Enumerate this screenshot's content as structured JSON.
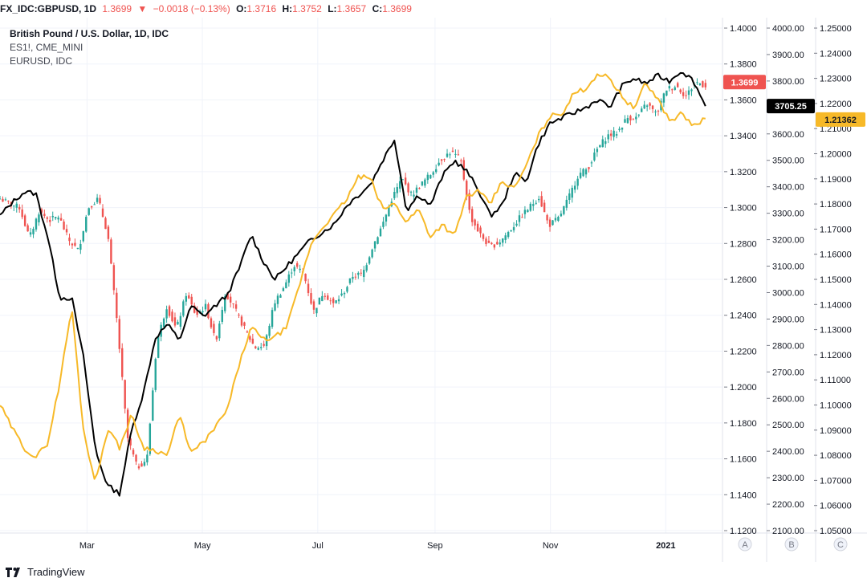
{
  "header": {
    "symbol": "FX_IDC:GBPUSD, 1D",
    "last": "1.3699",
    "arrow": "▼",
    "change": "−0.0018 (−0.13%)",
    "o_label": "O:",
    "o": "1.3716",
    "h_label": "H:",
    "h": "1.3752",
    "l_label": "L:",
    "l": "1.3657",
    "c_label": "C:",
    "c": "1.3699"
  },
  "legend": {
    "line1": "British Pound / U.S. Dollar, 1D, IDC",
    "line2": "ES1!, CME_MINI",
    "line3": "EURUSD, IDC"
  },
  "footer": {
    "brand": "TradingView"
  },
  "colors": {
    "up": "#26a69a",
    "down": "#ef5350",
    "es": "#000000",
    "eur": "#f7b928",
    "grid": "#f0f3fa"
  },
  "chart_data": {
    "type": "line",
    "title": "British Pound / U.S. Dollar, 1D, IDC",
    "x_ticks": [
      "Mar",
      "May",
      "Jul",
      "Sep",
      "Nov",
      "2021"
    ],
    "x_range": [
      "2020-01-15",
      "2021-01-31"
    ],
    "axis_buttons": [
      "A",
      "B",
      "C"
    ],
    "axes": {
      "A": {
        "min": 1.12,
        "max": 1.4,
        "ticks": [
          "1.4000",
          "1.3800",
          "1.3600",
          "1.3400",
          "1.3200",
          "1.3000",
          "1.2800",
          "1.2600",
          "1.2400",
          "1.2200",
          "1.2000",
          "1.1800",
          "1.1600",
          "1.1400",
          "1.1200"
        ]
      },
      "B": {
        "min": 2100,
        "max": 4000,
        "ticks": [
          "4000.00",
          "3900.00",
          "3800.00",
          "3700.00",
          "3600.00",
          "3500.00",
          "3400.00",
          "3300.00",
          "3200.00",
          "3100.00",
          "3000.00",
          "2900.00",
          "2800.00",
          "2700.00",
          "2600.00",
          "2500.00",
          "2400.00",
          "2300.00",
          "2200.00",
          "2100.00"
        ]
      },
      "C": {
        "min": 1.05,
        "max": 1.25,
        "ticks": [
          "1.25000",
          "1.24000",
          "1.23000",
          "1.22000",
          "1.21000",
          "1.20000",
          "1.19000",
          "1.18000",
          "1.17000",
          "1.16000",
          "1.15000",
          "1.14000",
          "1.13000",
          "1.12000",
          "1.11000",
          "1.10000",
          "1.09000",
          "1.08000",
          "1.07000",
          "1.06000",
          "1.05000"
        ]
      }
    },
    "price_labels": [
      {
        "axis": "A",
        "series": "GBPUSD",
        "text": "1.3699",
        "value": 1.3699
      },
      {
        "axis": "B",
        "series": "ES1!",
        "text": "3705.25",
        "value": 3705.25
      },
      {
        "axis": "C",
        "series": "EURUSD",
        "text": "1.21362",
        "value": 1.21362
      }
    ],
    "series": [
      {
        "name": "GBPUSD",
        "kind": "candlestick",
        "axis": "A",
        "x_start": "2020-01-15",
        "x_end": "2021-01-22",
        "anchors": [
          1.305,
          1.302,
          1.3,
          1.283,
          1.298,
          1.293,
          1.295,
          1.282,
          1.276,
          1.3,
          1.305,
          1.285,
          1.233,
          1.172,
          1.155,
          1.16,
          1.225,
          1.245,
          1.232,
          1.252,
          1.24,
          1.245,
          1.225,
          1.253,
          1.243,
          1.232,
          1.222,
          1.223,
          1.247,
          1.256,
          1.268,
          1.263,
          1.242,
          1.253,
          1.246,
          1.252,
          1.262,
          1.263,
          1.278,
          1.29,
          1.305,
          1.316,
          1.307,
          1.313,
          1.319,
          1.327,
          1.331,
          1.327,
          1.295,
          1.285,
          1.278,
          1.281,
          1.287,
          1.294,
          1.3,
          1.306,
          1.29,
          1.294,
          1.305,
          1.318,
          1.322,
          1.333,
          1.34,
          1.342,
          1.35,
          1.35,
          1.358,
          1.352,
          1.366,
          1.368,
          1.362,
          1.37,
          1.368
        ]
      },
      {
        "name": "ES1!",
        "kind": "line",
        "axis": "B",
        "x_start": "2020-01-15",
        "x_end": "2021-01-22",
        "anchors": [
          3290,
          3340,
          3380,
          3375,
          3210,
          2980,
          2980,
          2750,
          2400,
          2270,
          2240,
          2480,
          2620,
          2830,
          2880,
          2820,
          2950,
          2910,
          2950,
          2990,
          3090,
          3220,
          3120,
          3050,
          3100,
          3150,
          3200,
          3230,
          3260,
          3330,
          3370,
          3410,
          3500,
          3580,
          3310,
          3370,
          3330,
          3440,
          3500,
          3460,
          3390,
          3290,
          3330,
          3450,
          3420,
          3560,
          3640,
          3660,
          3680,
          3700,
          3730,
          3700,
          3780,
          3810,
          3790,
          3820,
          3800,
          3840,
          3800,
          3705
        ]
      },
      {
        "name": "EURUSD",
        "kind": "line",
        "axis": "C",
        "x_start": "2020-01-15",
        "x_end": "2021-01-22",
        "anchors": [
          1.1,
          1.091,
          1.083,
          1.079,
          1.085,
          1.109,
          1.139,
          1.089,
          1.069,
          1.091,
          1.083,
          1.096,
          1.083,
          1.082,
          1.08,
          1.096,
          1.081,
          1.085,
          1.091,
          1.098,
          1.116,
          1.131,
          1.126,
          1.127,
          1.131,
          1.147,
          1.164,
          1.171,
          1.176,
          1.182,
          1.191,
          1.19,
          1.178,
          1.18,
          1.173,
          1.178,
          1.167,
          1.172,
          1.167,
          1.183,
          1.185,
          1.18,
          1.189,
          1.186,
          1.195,
          1.207,
          1.215,
          1.216,
          1.224,
          1.226,
          1.232,
          1.23,
          1.223,
          1.218,
          1.228,
          1.222,
          1.213,
          1.216,
          1.211,
          1.214
        ]
      }
    ]
  }
}
